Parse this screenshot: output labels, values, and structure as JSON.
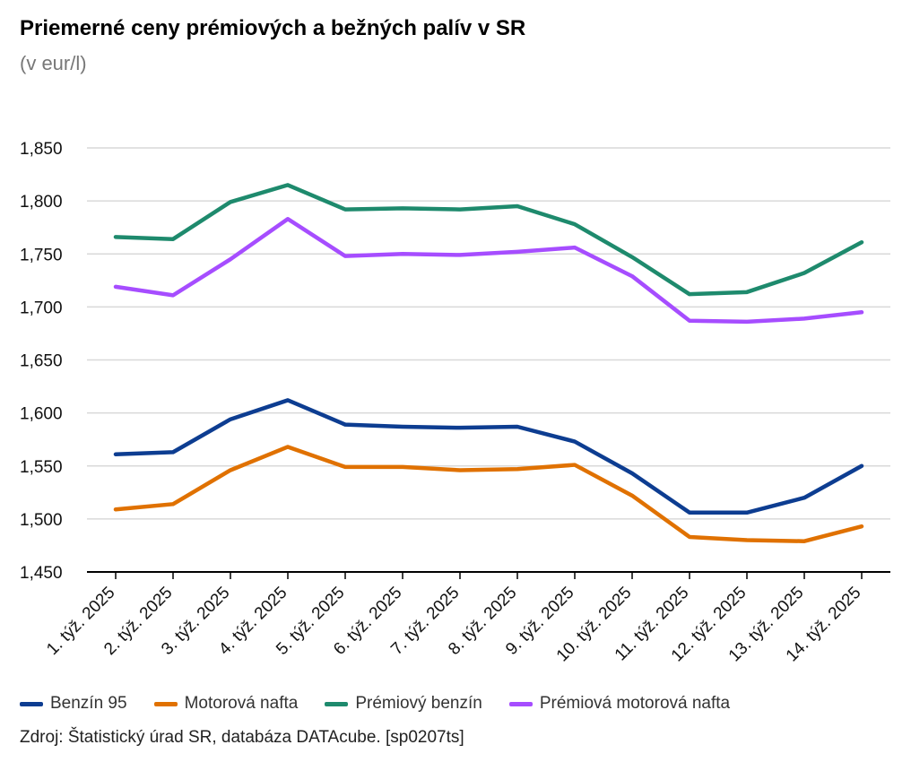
{
  "chart_data": {
    "type": "line",
    "title": "Priemerné ceny prémiových a bežných palív v SR",
    "subtitle": "(v eur/l)",
    "categories": [
      "1. týž. 2025",
      "2. týž. 2025",
      "3. týž. 2025",
      "4. týž. 2025",
      "5. týž. 2025",
      "6. týž. 2025",
      "7. týž. 2025",
      "8. týž. 2025",
      "9. týž. 2025",
      "10. týž. 2025",
      "11. týž. 2025",
      "12. týž. 2025",
      "13. týž. 2025",
      "14. týž. 2025"
    ],
    "y_ticks": [
      "1,850",
      "1,800",
      "1,750",
      "1,700",
      "1,650",
      "1,600",
      "1,550",
      "1,500",
      "1,450"
    ],
    "ylim": [
      1.45,
      1.85
    ],
    "grid": true,
    "legend_position": "bottom",
    "series": [
      {
        "name": "Benzín 95",
        "color": "#0d3d91",
        "values": [
          1.561,
          1.563,
          1.594,
          1.612,
          1.589,
          1.587,
          1.586,
          1.587,
          1.573,
          1.543,
          1.506,
          1.506,
          1.52,
          1.55
        ]
      },
      {
        "name": "Motorová nafta",
        "color": "#e07100",
        "values": [
          1.509,
          1.514,
          1.546,
          1.568,
          1.549,
          1.549,
          1.546,
          1.547,
          1.551,
          1.522,
          1.483,
          1.48,
          1.479,
          1.493
        ]
      },
      {
        "name": "Prémiový benzín",
        "color": "#1e8a6d",
        "values": [
          1.766,
          1.764,
          1.799,
          1.815,
          1.792,
          1.793,
          1.792,
          1.795,
          1.778,
          1.747,
          1.712,
          1.714,
          1.732,
          1.761
        ]
      },
      {
        "name": "Prémiová motorová nafta",
        "color": "#a64dff",
        "values": [
          1.719,
          1.711,
          1.745,
          1.783,
          1.748,
          1.75,
          1.749,
          1.752,
          1.756,
          1.729,
          1.687,
          1.686,
          1.689,
          1.695
        ]
      }
    ]
  },
  "source": "Zdroj: Štatistický úrad SR, databáza DATAcube. [sp0207ts]"
}
